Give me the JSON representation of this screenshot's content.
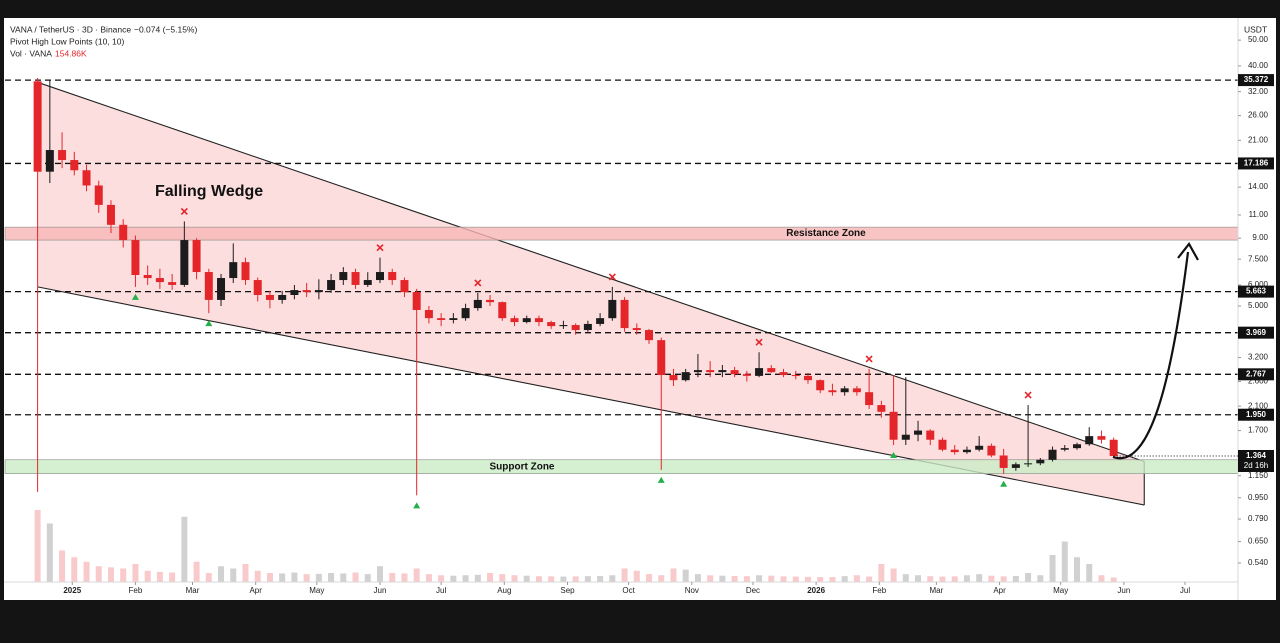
{
  "header": {
    "symbol": "VANA / TetherUS · 3D · Binance",
    "change": "−0.074 (−5.15%)",
    "indicator": "Pivot High Low Points (10, 10)",
    "volume_label": "Vol · VANA",
    "volume_value": "154.86K",
    "currency": "USDT"
  },
  "chart_data": {
    "type": "candlestick",
    "log_scale": true,
    "up_color": "#1c1c1c",
    "down_color": "#e4262b",
    "xlim": [
      -33,
      572
    ],
    "ylim": [
      0.458,
      58.5
    ],
    "xticks": [
      {
        "value": 0,
        "label": "2025"
      },
      {
        "value": 31,
        "label": "Feb"
      },
      {
        "value": 59,
        "label": "Mar"
      },
      {
        "value": 90,
        "label": "Apr"
      },
      {
        "value": 120,
        "label": "May"
      },
      {
        "value": 151,
        "label": "Jun"
      },
      {
        "value": 181,
        "label": "Jul"
      },
      {
        "value": 212,
        "label": "Aug"
      },
      {
        "value": 243,
        "label": "Sep"
      },
      {
        "value": 273,
        "label": "Oct"
      },
      {
        "value": 304,
        "label": "Nov"
      },
      {
        "value": 334,
        "label": "Dec"
      },
      {
        "value": 365,
        "label": "2026"
      },
      {
        "value": 396,
        "label": "Feb"
      },
      {
        "value": 424,
        "label": "Mar"
      },
      {
        "value": 455,
        "label": "Apr"
      },
      {
        "value": 485,
        "label": "May"
      },
      {
        "value": 516,
        "label": "Jun"
      },
      {
        "value": 546,
        "label": "Jul"
      }
    ],
    "yticks": [
      {
        "value": 50,
        "label": "50.00"
      },
      {
        "value": 40,
        "label": "40.00"
      },
      {
        "value": 32,
        "label": "32.00"
      },
      {
        "value": 26,
        "label": "26.00"
      },
      {
        "value": 21,
        "label": "21.00"
      },
      {
        "value": 14,
        "label": "14.00"
      },
      {
        "value": 11,
        "label": "11.00"
      },
      {
        "value": 9,
        "label": "9.00"
      },
      {
        "value": 7.5,
        "label": "7.500"
      },
      {
        "value": 6,
        "label": "6.000"
      },
      {
        "value": 5,
        "label": "5.000"
      },
      {
        "value": 3.2,
        "label": "3.200"
      },
      {
        "value": 2.6,
        "label": "2.600"
      },
      {
        "value": 2.1,
        "label": "2.100"
      },
      {
        "value": 1.7,
        "label": "1.700"
      },
      {
        "value": 1.15,
        "label": "1.150"
      },
      {
        "value": 0.95,
        "label": "0.950"
      },
      {
        "value": 0.79,
        "label": "0.790"
      },
      {
        "value": 0.65,
        "label": "0.650"
      },
      {
        "value": 0.54,
        "label": "0.540"
      }
    ],
    "x": [
      -17,
      -11,
      -5,
      1,
      7,
      13,
      19,
      25,
      31,
      37,
      43,
      49,
      55,
      61,
      67,
      73,
      79,
      85,
      91,
      97,
      103,
      109,
      115,
      121,
      127,
      133,
      139,
      145,
      151,
      157,
      163,
      169,
      175,
      181,
      187,
      193,
      199,
      205,
      211,
      217,
      223,
      229,
      235,
      241,
      247,
      253,
      259,
      265,
      271,
      277,
      283,
      289,
      295,
      301,
      307,
      313,
      319,
      325,
      331,
      337,
      343,
      349,
      355,
      361,
      367,
      373,
      379,
      385,
      391,
      397,
      403,
      409,
      415,
      421,
      427,
      433,
      439,
      445,
      451,
      457,
      463,
      469,
      475,
      481,
      487,
      493,
      499,
      505,
      511
    ],
    "open": [
      35.0,
      16.0,
      19.3,
      17.7,
      16.2,
      14.2,
      12.0,
      10.1,
      8.85,
      6.54,
      6.37,
      6.15,
      6.0,
      8.85,
      6.71,
      5.27,
      6.37,
      7.31,
      6.26,
      5.5,
      5.27,
      5.5,
      5.74,
      5.64,
      5.74,
      6.26,
      6.71,
      6.0,
      6.26,
      6.71,
      6.26,
      5.64,
      4.83,
      4.5,
      4.43,
      4.5,
      4.91,
      5.27,
      5.17,
      4.5,
      4.35,
      4.5,
      4.35,
      4.2,
      4.24,
      4.06,
      4.28,
      4.5,
      5.27,
      4.13,
      4.06,
      3.72,
      2.75,
      2.63,
      2.82,
      2.87,
      2.82,
      2.87,
      2.77,
      2.73,
      2.92,
      2.82,
      2.75,
      2.73,
      2.63,
      2.41,
      2.37,
      2.45,
      2.37,
      2.12,
      2.0,
      1.57,
      1.64,
      1.7,
      1.57,
      1.44,
      1.41,
      1.44,
      1.49,
      1.37,
      1.23,
      1.27,
      1.28,
      1.32,
      1.44,
      1.46,
      1.51,
      1.62,
      1.57
    ],
    "high": [
      36.0,
      35.4,
      22.5,
      19.0,
      17.0,
      14.8,
      12.5,
      10.6,
      9.2,
      7.1,
      6.9,
      6.6,
      10.4,
      9.0,
      6.9,
      6.6,
      8.6,
      7.6,
      6.4,
      5.7,
      5.7,
      6.0,
      6.1,
      6.3,
      6.6,
      7.0,
      6.9,
      6.7,
      7.6,
      6.9,
      6.4,
      5.8,
      5.0,
      4.7,
      4.7,
      5.1,
      5.6,
      5.5,
      5.2,
      4.6,
      4.6,
      4.6,
      4.4,
      4.4,
      4.3,
      4.4,
      4.7,
      5.9,
      5.4,
      4.3,
      4.1,
      3.8,
      2.9,
      2.9,
      3.3,
      3.1,
      3.0,
      2.95,
      2.85,
      3.35,
      3.0,
      2.9,
      2.85,
      2.8,
      2.65,
      2.55,
      2.5,
      2.5,
      2.9,
      2.2,
      2.75,
      2.7,
      1.85,
      1.72,
      1.6,
      1.5,
      1.48,
      1.62,
      1.52,
      1.45,
      1.29,
      2.12,
      1.34,
      1.48,
      1.5,
      1.53,
      1.75,
      1.7,
      1.6
    ],
    "low": [
      1.0,
      14.5,
      16.5,
      15.5,
      13.5,
      11.2,
      9.4,
      8.3,
      5.9,
      6.0,
      5.8,
      5.75,
      5.9,
      6.3,
      4.7,
      5.0,
      6.1,
      6.0,
      5.2,
      4.9,
      5.1,
      5.3,
      5.4,
      5.3,
      5.6,
      6.0,
      5.8,
      5.9,
      6.1,
      6.0,
      5.4,
      0.97,
      4.3,
      4.2,
      4.3,
      4.4,
      4.8,
      5.0,
      4.4,
      4.2,
      4.3,
      4.2,
      4.1,
      4.1,
      3.9,
      4.0,
      4.2,
      4.4,
      4.0,
      3.9,
      3.6,
      1.21,
      2.5,
      2.6,
      2.7,
      2.7,
      2.7,
      2.7,
      2.6,
      2.7,
      2.8,
      2.7,
      2.65,
      2.55,
      2.35,
      2.3,
      2.3,
      2.3,
      2.05,
      1.9,
      1.5,
      1.5,
      1.55,
      1.5,
      1.42,
      1.38,
      1.39,
      1.42,
      1.35,
      1.17,
      1.2,
      1.24,
      1.26,
      1.3,
      1.42,
      1.44,
      1.49,
      1.52,
      1.35
    ],
    "close": [
      16.0,
      19.3,
      17.7,
      16.2,
      14.2,
      12.0,
      10.1,
      8.85,
      6.54,
      6.37,
      6.15,
      6.0,
      8.85,
      6.71,
      5.27,
      6.37,
      7.31,
      6.26,
      5.5,
      5.27,
      5.5,
      5.74,
      5.64,
      5.74,
      6.26,
      6.71,
      6.0,
      6.26,
      6.71,
      6.26,
      5.64,
      4.83,
      4.5,
      4.43,
      4.5,
      4.91,
      5.27,
      5.17,
      4.5,
      4.35,
      4.5,
      4.35,
      4.2,
      4.24,
      4.06,
      4.28,
      4.5,
      5.27,
      4.13,
      4.06,
      3.72,
      2.75,
      2.63,
      2.82,
      2.87,
      2.82,
      2.87,
      2.77,
      2.73,
      2.92,
      2.82,
      2.75,
      2.73,
      2.63,
      2.41,
      2.37,
      2.45,
      2.37,
      2.12,
      2.0,
      1.57,
      1.64,
      1.7,
      1.57,
      1.44,
      1.41,
      1.44,
      1.49,
      1.37,
      1.23,
      1.27,
      1.28,
      1.32,
      1.44,
      1.46,
      1.51,
      1.62,
      1.57,
      1.364
    ],
    "volume": [
      3200,
      2600,
      1400,
      1100,
      900,
      700,
      650,
      600,
      800,
      500,
      450,
      420,
      2900,
      900,
      400,
      700,
      600,
      800,
      500,
      400,
      380,
      420,
      350,
      360,
      400,
      380,
      420,
      350,
      700,
      400,
      380,
      600,
      350,
      300,
      280,
      300,
      320,
      400,
      350,
      300,
      280,
      260,
      250,
      240,
      250,
      260,
      270,
      300,
      600,
      500,
      350,
      300,
      600,
      550,
      350,
      300,
      280,
      270,
      260,
      300,
      280,
      250,
      240,
      230,
      220,
      220,
      260,
      300,
      240,
      800,
      600,
      350,
      300,
      260,
      240,
      250,
      300,
      350,
      280,
      250,
      270,
      400,
      300,
      1200,
      1800,
      1100,
      800,
      300,
      200
    ],
    "pivot_highs": [
      55,
      151,
      199,
      265,
      337,
      391,
      469
    ],
    "pivot_lows": [
      31,
      67,
      169,
      289,
      403,
      457
    ],
    "levels": [
      35.372,
      17.186,
      5.663,
      3.969,
      2.767,
      {
        "value": 1.95,
        "label": "1.950"
      }
    ],
    "last_price": 1.364,
    "countdown": "2d 16h",
    "zones": [
      {
        "label": "Resistance Zone",
        "range": [
          8.85,
          9.9
        ],
        "color": "#f7b5b5"
      },
      {
        "label": "Support Zone",
        "range": [
          1.17,
          1.32
        ],
        "color": "#c9ecc4"
      }
    ],
    "wedge": {
      "label": "Falling Wedge",
      "upper": [
        [
          -17,
          34.7
        ],
        [
          526,
          1.3
        ]
      ],
      "lower": [
        [
          -17,
          5.9
        ],
        [
          526,
          0.892
        ]
      ],
      "color": "#fbd3d3"
    }
  }
}
